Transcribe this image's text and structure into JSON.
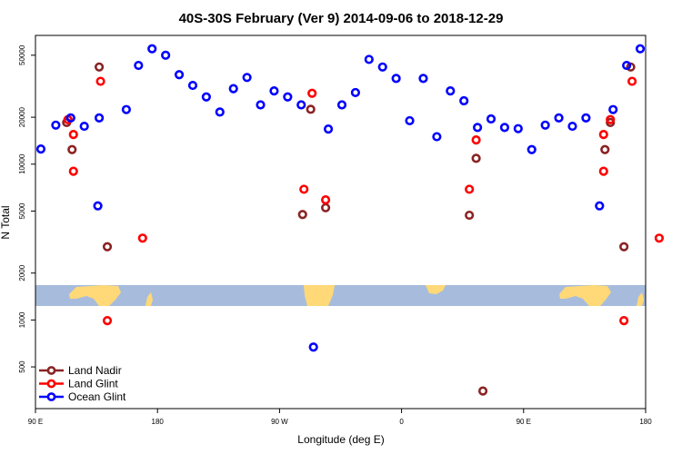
{
  "chart_data": {
    "type": "scatter",
    "title": "40S-30S February (Ver 9)   2014-09-06 to 2018-12-29",
    "xlabel": "Longitude (deg E)",
    "ylabel": "N Total",
    "x_ticks": [
      {
        "value": 90,
        "label": "90 E"
      },
      {
        "value": 180,
        "label": "180"
      },
      {
        "value": 270,
        "label": "90 W"
      },
      {
        "value": 360,
        "label": "0"
      },
      {
        "value": 450,
        "label": "90 E"
      },
      {
        "value": 540,
        "label": "180"
      }
    ],
    "y_ticks": [
      {
        "value": 500,
        "label": "500"
      },
      {
        "value": 1000,
        "label": "1000"
      },
      {
        "value": 2000,
        "label": "2000"
      },
      {
        "value": 5000,
        "label": "5000"
      },
      {
        "value": 10000,
        "label": "10000"
      },
      {
        "value": 20000,
        "label": "20000"
      },
      {
        "value": 50000,
        "label": "50000"
      }
    ],
    "xlim": [
      90,
      540
    ],
    "ylim": [
      270,
      67000
    ],
    "y_scale": "log",
    "grid": false,
    "legend_position": "bottom-left",
    "series": [
      {
        "name": "Land Nadir",
        "color": "#8b2323",
        "points": [
          {
            "x": 117,
            "y": 12400
          },
          {
            "x": 137,
            "y": 42000
          },
          {
            "x": 113,
            "y": 18500
          },
          {
            "x": 143,
            "y": 2950
          },
          {
            "x": 287,
            "y": 4750
          },
          {
            "x": 293,
            "y": 22500
          },
          {
            "x": 304,
            "y": 5250
          },
          {
            "x": 410,
            "y": 4700
          },
          {
            "x": 415,
            "y": 10900
          },
          {
            "x": 420,
            "y": 350
          },
          {
            "x": 510,
            "y": 12400
          },
          {
            "x": 529,
            "y": 42000
          },
          {
            "x": 514,
            "y": 18500
          },
          {
            "x": 524,
            "y": 2950
          }
        ]
      },
      {
        "name": "Land Glint",
        "color": "#ff0000",
        "points": [
          {
            "x": 118,
            "y": 15500
          },
          {
            "x": 138,
            "y": 34000
          },
          {
            "x": 114,
            "y": 19300
          },
          {
            "x": 118,
            "y": 9000
          },
          {
            "x": 143,
            "y": 990
          },
          {
            "x": 169,
            "y": 3350
          },
          {
            "x": 288,
            "y": 6900
          },
          {
            "x": 294,
            "y": 28500
          },
          {
            "x": 304,
            "y": 5900
          },
          {
            "x": 410,
            "y": 6900
          },
          {
            "x": 415,
            "y": 14300
          },
          {
            "x": 509,
            "y": 15500
          },
          {
            "x": 530,
            "y": 34000
          },
          {
            "x": 514,
            "y": 19300
          },
          {
            "x": 509,
            "y": 9000
          },
          {
            "x": 524,
            "y": 990
          },
          {
            "x": 550,
            "y": 3350
          }
        ]
      },
      {
        "name": "Ocean Glint",
        "color": "#0000ff",
        "points": [
          {
            "x": 94,
            "y": 12500
          },
          {
            "x": 105,
            "y": 17800
          },
          {
            "x": 116,
            "y": 19800
          },
          {
            "x": 126,
            "y": 17500
          },
          {
            "x": 136,
            "y": 5400
          },
          {
            "x": 137,
            "y": 19800
          },
          {
            "x": 157,
            "y": 22400
          },
          {
            "x": 166,
            "y": 43000
          },
          {
            "x": 176,
            "y": 55000
          },
          {
            "x": 186,
            "y": 50000
          },
          {
            "x": 196,
            "y": 37500
          },
          {
            "x": 206,
            "y": 32000
          },
          {
            "x": 216,
            "y": 27000
          },
          {
            "x": 226,
            "y": 21600
          },
          {
            "x": 236,
            "y": 30500
          },
          {
            "x": 246,
            "y": 36000
          },
          {
            "x": 256,
            "y": 24000
          },
          {
            "x": 266,
            "y": 29500
          },
          {
            "x": 276,
            "y": 27000
          },
          {
            "x": 286,
            "y": 24000
          },
          {
            "x": 295,
            "y": 670
          },
          {
            "x": 306,
            "y": 16800
          },
          {
            "x": 316,
            "y": 24000
          },
          {
            "x": 326,
            "y": 28800
          },
          {
            "x": 336,
            "y": 47000
          },
          {
            "x": 346,
            "y": 42000
          },
          {
            "x": 356,
            "y": 35500
          },
          {
            "x": 366,
            "y": 19000
          },
          {
            "x": 376,
            "y": 35500
          },
          {
            "x": 386,
            "y": 15000
          },
          {
            "x": 396,
            "y": 29500
          },
          {
            "x": 406,
            "y": 25500
          },
          {
            "x": 416,
            "y": 17200
          },
          {
            "x": 426,
            "y": 19500
          },
          {
            "x": 436,
            "y": 17200
          },
          {
            "x": 446,
            "y": 16900
          },
          {
            "x": 456,
            "y": 12400
          },
          {
            "x": 466,
            "y": 17800
          },
          {
            "x": 476,
            "y": 19800
          },
          {
            "x": 486,
            "y": 17500
          },
          {
            "x": 496,
            "y": 19800
          },
          {
            "x": 506,
            "y": 5400
          },
          {
            "x": 516,
            "y": 22400
          },
          {
            "x": 526,
            "y": 43000
          },
          {
            "x": 536,
            "y": 55000
          }
        ]
      }
    ]
  }
}
